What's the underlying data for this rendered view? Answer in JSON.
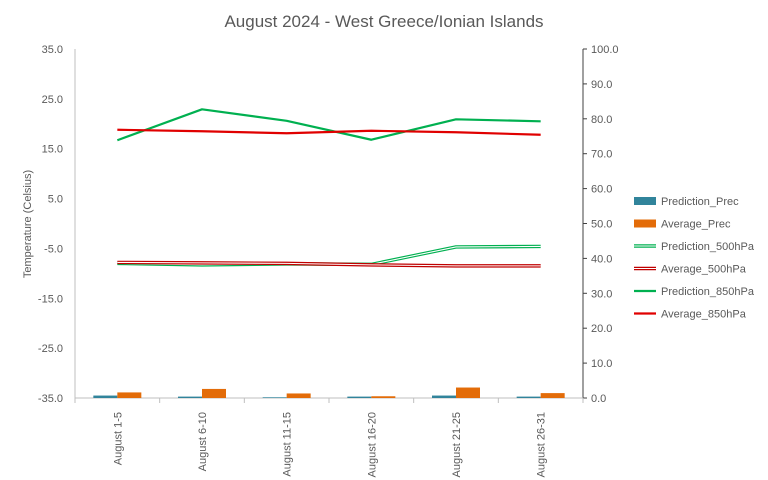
{
  "chart_data": {
    "type": "combo-bar-line",
    "title": "August 2024 - West Greece/Ionian Islands",
    "ylabel_left": "Temperature  (Celsius)",
    "ylabel_right": "",
    "ylim_left": [
      -35,
      35
    ],
    "yticks_left": [
      "35.0",
      "25.0",
      "15.0",
      "5.0",
      "-5.0",
      "-15.0",
      "-25.0",
      "-35.0"
    ],
    "ylim_right": [
      0,
      100
    ],
    "yticks_right": [
      "100.0",
      "90.0",
      "80.0",
      "70.0",
      "60.0",
      "50.0",
      "40.0",
      "30.0",
      "20.0",
      "10.0",
      "0.0"
    ],
    "categories": [
      "August 1-5",
      "August 6-10",
      "August 11-15",
      "August 16-20",
      "August 21-25",
      "August 26-31"
    ],
    "grid": false,
    "legend_position": "right",
    "bar_series": [
      {
        "name": "Prediction_Prec",
        "axis": "right",
        "color": "#31849b",
        "values": [
          0.7,
          0.4,
          0.2,
          0.4,
          0.7,
          0.4
        ]
      },
      {
        "name": "Average_Prec",
        "axis": "right",
        "color": "#e36c09",
        "values": [
          1.6,
          2.6,
          1.3,
          0.5,
          3.0,
          1.4
        ]
      }
    ],
    "line_series": [
      {
        "name": "Prediction_500hPa",
        "axis": "left",
        "color": "#00b050",
        "style": "double",
        "values": [
          -8.0,
          -8.3,
          -8.1,
          -8.2,
          -4.7,
          -4.6
        ]
      },
      {
        "name": "Average_500hPa",
        "axis": "left",
        "color": "#c00000",
        "style": "double",
        "values": [
          -7.8,
          -7.9,
          -8.0,
          -8.3,
          -8.5,
          -8.5
        ]
      },
      {
        "name": "Prediction_850hPa",
        "axis": "left",
        "color": "#00b050",
        "style": "solid",
        "values": [
          16.7,
          22.9,
          20.6,
          16.8,
          20.9,
          20.5
        ]
      },
      {
        "name": "Average_850hPa",
        "axis": "left",
        "color": "#e00000",
        "style": "solid",
        "values": [
          18.8,
          18.5,
          18.1,
          18.6,
          18.3,
          17.8
        ]
      }
    ]
  }
}
